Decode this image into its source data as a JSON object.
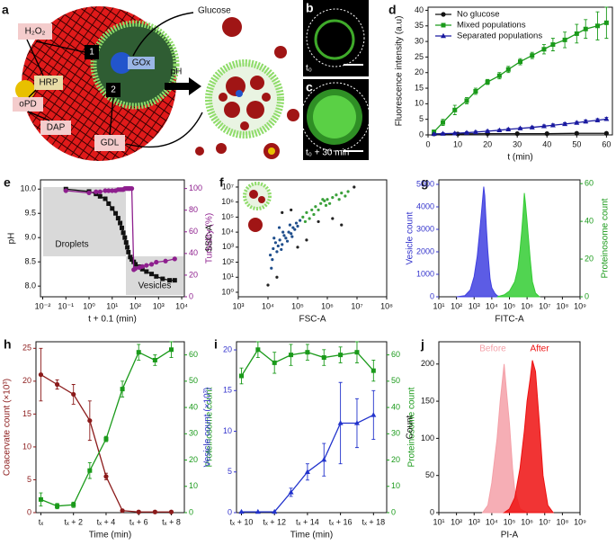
{
  "schematic": {
    "label": "a",
    "h2o2": "H₂O₂",
    "glucose": "Glucose",
    "hrp": "HRP",
    "opd": "oPD",
    "dap": "DAP",
    "gox": "GOx",
    "step1": "1",
    "step2": "2",
    "gdl": "GDL",
    "ph": "pH"
  },
  "images": {
    "b": {
      "label": "b",
      "time": "t₀"
    },
    "c": {
      "label": "c",
      "time": "t₀ + 30 min"
    }
  },
  "chart_data": [
    {
      "type": "line",
      "label": "d",
      "xlabel": "t (min)",
      "ylabel": "Fluorescence intensity (a.u)",
      "xlim": [
        0,
        62
      ],
      "ylim": [
        0,
        41
      ],
      "xticks": [
        0,
        10,
        20,
        30,
        40,
        50,
        60
      ],
      "yticks": [
        0,
        5,
        10,
        15,
        20,
        25,
        30,
        35,
        40
      ],
      "legend": "upper left",
      "series": [
        {
          "name": "No glucose",
          "color": "#111111",
          "marker": "circle",
          "x": [
            2,
            10,
            20,
            30,
            40,
            50,
            60
          ],
          "values": [
            0.3,
            0.3,
            0.4,
            0.4,
            0.4,
            0.5,
            0.5
          ]
        },
        {
          "name": "Mixed populations",
          "color": "#1a9a1a",
          "marker": "square",
          "x": [
            2,
            5,
            9,
            13,
            16,
            20,
            24,
            27,
            31,
            35,
            39,
            42,
            46,
            50,
            53,
            57,
            60
          ],
          "values": [
            1,
            4,
            8,
            11,
            14,
            17,
            19,
            21,
            23.5,
            25.5,
            27.5,
            29,
            30.5,
            32.5,
            34,
            35,
            36
          ],
          "errors": [
            0.5,
            1,
            1.5,
            1,
            1,
            0.8,
            1,
            1,
            1,
            1,
            1.5,
            2,
            2.5,
            3,
            3,
            4.5,
            5
          ]
        },
        {
          "name": "Separated populations",
          "color": "#1a1aa0",
          "marker": "triangle",
          "x": [
            2,
            5,
            9,
            13,
            16,
            20,
            24,
            27,
            31,
            35,
            39,
            42,
            46,
            50,
            53,
            57,
            60
          ],
          "values": [
            0.3,
            0.4,
            0.5,
            0.7,
            0.9,
            1.2,
            1.5,
            1.8,
            2.1,
            2.4,
            2.8,
            3.1,
            3.5,
            3.9,
            4.3,
            4.7,
            5.1
          ],
          "errors": [
            0.3,
            0.3,
            0.3,
            0.3,
            0.3,
            0.3,
            0.3,
            0.3,
            0.3,
            0.4,
            0.4,
            0.4,
            0.4,
            0.4,
            0.5,
            0.5,
            0.5
          ]
        }
      ]
    },
    {
      "type": "line",
      "label": "e",
      "xlabel": "t + 0.1 (min)",
      "ylabel": "pH",
      "y2label": "Turbidity (%)",
      "y2color": "#8e1f8e",
      "xlog": true,
      "xlim": [
        0.008,
        13000
      ],
      "ylim": [
        7.78,
        10.19
      ],
      "y2lim": [
        0,
        108
      ],
      "xticks": [
        {
          "value": 0.01,
          "label": "10⁻²"
        },
        {
          "value": 0.1,
          "label": "10⁻¹"
        },
        {
          "value": 1,
          "label": "10⁰"
        },
        {
          "value": 10,
          "label": "10¹"
        },
        {
          "value": 100,
          "label": "10²"
        },
        {
          "value": 1000,
          "label": "10³"
        },
        {
          "value": 10000,
          "label": "10⁴"
        }
      ],
      "yticks": [
        {
          "value": 8,
          "label": "8.0"
        },
        8.5,
        {
          "value": 9,
          "label": "9.0"
        },
        9.5,
        {
          "value": 10,
          "label": "10.0"
        }
      ],
      "y2ticks": [
        0,
        20,
        40,
        60,
        80,
        100
      ],
      "annotations": [
        "Droplets",
        "Vesicles"
      ],
      "series": [
        {
          "color": "#111111",
          "marker": "square",
          "x": [
            0.1,
            1,
            2,
            3,
            5,
            7,
            10,
            14,
            18,
            22,
            26,
            30,
            35,
            40,
            45,
            50,
            60,
            70,
            85,
            100,
            150,
            200,
            300,
            500,
            800,
            1500,
            3000,
            5000
          ],
          "values": [
            10.0,
            9.95,
            9.9,
            9.85,
            9.8,
            9.7,
            9.6,
            9.5,
            9.4,
            9.3,
            9.2,
            9.1,
            9.0,
            8.9,
            8.8,
            8.7,
            8.6,
            8.55,
            8.5,
            8.45,
            8.4,
            8.35,
            8.3,
            8.25,
            8.2,
            8.15,
            8.12,
            8.12
          ]
        },
        {
          "color": "#8e1f8e",
          "marker": "circle",
          "axis": "y2",
          "x": [
            0.1,
            1,
            2,
            3,
            5,
            7,
            10,
            14,
            18,
            22,
            26,
            30,
            35,
            40,
            45,
            50,
            55,
            60,
            70,
            85,
            100,
            150,
            200,
            300,
            500,
            800,
            2000,
            5000
          ],
          "values": [
            98,
            96,
            97,
            97,
            98,
            98,
            98,
            98,
            99,
            99,
            99,
            99,
            100,
            100,
            100,
            100,
            100,
            100,
            100,
            25,
            26,
            27,
            28,
            29,
            30,
            32,
            33,
            35
          ]
        }
      ]
    },
    {
      "type": "scatter",
      "label": "f",
      "xlabel": "FSC-A",
      "ylabel": "SSC-A",
      "xlog": true,
      "ylog": true,
      "xlim": [
        1000,
        100000000
      ],
      "ylim": [
        0.5,
        30000000
      ],
      "xticks": [
        {
          "value": 1000,
          "label": "10³"
        },
        {
          "value": 10000,
          "label": "10⁴"
        },
        {
          "value": 100000,
          "label": "10⁵"
        },
        {
          "value": 1000000,
          "label": "10⁶"
        },
        {
          "value": 10000000,
          "label": "10⁷"
        },
        {
          "value": 100000000,
          "label": "10⁸"
        }
      ],
      "yticks": [
        {
          "value": 1,
          "label": "10⁰"
        },
        {
          "value": 10,
          "label": "10¹"
        },
        {
          "value": 100,
          "label": "10²"
        },
        {
          "value": 1000,
          "label": "10³"
        },
        {
          "value": 10000,
          "label": "10⁴"
        },
        {
          "value": 100000,
          "label": "10⁵"
        },
        {
          "value": 1000000,
          "label": "10⁶"
        },
        {
          "value": 10000000,
          "label": "10⁷"
        }
      ],
      "series": [
        {
          "color": "#1f4e8c",
          "x": [
            12000,
            15000,
            18000,
            20000,
            25000,
            30000,
            35000,
            40000,
            50000,
            60000,
            70000,
            80000,
            14000,
            22000,
            28000,
            45000,
            55000,
            90000,
            100000,
            16000,
            32000,
            65000,
            120000,
            13000,
            24000
          ],
          "values": [
            300,
            800,
            2000,
            500,
            3000,
            1500,
            6000,
            4000,
            10000,
            8000,
            20000,
            15000,
            150,
            1200,
            700,
            2500,
            30000,
            40000,
            25000,
            4000,
            10000,
            5000,
            60000,
            40,
            20000
          ]
        },
        {
          "color": "#3aa03a",
          "x": [
            150000,
            200000,
            300000,
            400000,
            600000,
            800000,
            1000000,
            1500000,
            2000000,
            3000000,
            5000000,
            250000,
            500000,
            700000,
            1200000,
            180000,
            350000,
            2500000,
            4000000,
            900000
          ],
          "values": [
            100000,
            200000,
            300000,
            500000,
            800000,
            1200000,
            1500000,
            2000000,
            3000000,
            4000000,
            5000000,
            80000,
            300000,
            1500000,
            800000,
            50000,
            150000,
            1500000,
            2500000,
            600000
          ]
        },
        {
          "color": "#222222",
          "x": [
            20000,
            30000,
            3000000,
            100000,
            500000,
            8000000,
            10000,
            60000,
            1500000,
            200000
          ],
          "values": [
            10,
            200000,
            30000,
            1000,
            50000,
            10000000,
            3,
            300000,
            80000,
            3000
          ]
        }
      ]
    },
    {
      "type": "area",
      "label": "g",
      "xlabel": "FITC-A",
      "ylabel": "Vesicle count",
      "y2label": "Proteinosome count",
      "ycolor": "#3333cc",
      "y2color": "#1a9a1a",
      "xlog": true,
      "xlim": [
        10,
        1000000000
      ],
      "ylim": [
        0,
        5200
      ],
      "y2lim": [
        0,
        62
      ],
      "xticks": [
        {
          "value": 10,
          "label": "10¹"
        },
        {
          "value": 100,
          "label": "10²"
        },
        {
          "value": 1000,
          "label": "10³"
        },
        {
          "value": 10000,
          "label": "10⁴"
        },
        {
          "value": 100000,
          "label": "10⁵"
        },
        {
          "value": 1000000,
          "label": "10⁶"
        },
        {
          "value": 10000000,
          "label": "10⁷"
        },
        {
          "value": 100000000,
          "label": "10⁸"
        },
        {
          "value": 1000000000,
          "label": "10⁹"
        }
      ],
      "yticks": [
        0,
        1000,
        2000,
        3000,
        4000,
        5000
      ],
      "y2ticks": [
        0,
        20,
        40,
        60
      ],
      "series": [
        {
          "color": "#4040e0",
          "x": [
            100,
            300,
            600,
            1000,
            1500,
            2000,
            2500,
            3000,
            3500,
            4000,
            5000,
            6000,
            8000,
            10000,
            15000,
            20000,
            30000
          ],
          "values": [
            0,
            50,
            300,
            900,
            1800,
            2800,
            3600,
            4300,
            4900,
            4500,
            3000,
            2000,
            800,
            400,
            150,
            50,
            0
          ]
        },
        {
          "color": "#33cc33",
          "axis": "y2",
          "x": [
            20000,
            50000,
            100000,
            200000,
            300000,
            400000,
            500000,
            600000,
            700000,
            800000,
            1000000,
            1500000,
            2000000,
            3000000,
            5000000
          ],
          "values": [
            0,
            1,
            3,
            8,
            15,
            25,
            35,
            45,
            55,
            50,
            40,
            20,
            8,
            2,
            0
          ]
        }
      ]
    },
    {
      "type": "line",
      "label": "h",
      "xlabel": "Time (min)",
      "ylabel": "Coacervate count (×10³)",
      "y2label": "Proteinosome count",
      "ycolor": "#8b1a1a",
      "y2color": "#1a9a1a",
      "xlim": [
        -0.3,
        8.8
      ],
      "ylim": [
        0,
        26
      ],
      "y2lim": [
        0,
        65
      ],
      "xticks": [
        {
          "value": 0,
          "label": "tₓ"
        },
        {
          "value": 2,
          "label": "tₓ + 2"
        },
        {
          "value": 4,
          "label": "tₓ + 4"
        },
        {
          "value": 6,
          "label": "tₓ + 6"
        },
        {
          "value": 8,
          "label": "tₓ + 8"
        }
      ],
      "yticks": [
        0,
        5,
        10,
        15,
        20,
        25
      ],
      "y2ticks": [
        0,
        10,
        20,
        30,
        40,
        50,
        60
      ],
      "series": [
        {
          "color": "#8b1a1a",
          "marker": "circle",
          "x": [
            0,
            1,
            2,
            3,
            4,
            5,
            6,
            7,
            8
          ],
          "values": [
            21,
            19.5,
            18,
            14,
            5.5,
            0.3,
            0.1,
            0.1,
            0.1
          ],
          "errors": [
            4,
            0.7,
            1.5,
            3,
            0.5,
            0.2,
            0.2,
            0.2,
            0.2
          ]
        },
        {
          "color": "#1a9a1a",
          "marker": "square",
          "axis": "y2",
          "x": [
            0,
            1,
            2,
            3,
            4,
            5,
            6,
            7,
            8
          ],
          "values": [
            5,
            2.5,
            3,
            16,
            28,
            47,
            61,
            58,
            62
          ],
          "errors": [
            2.5,
            1,
            1,
            3,
            1,
            3,
            3,
            2,
            3
          ]
        }
      ]
    },
    {
      "type": "line",
      "label": "i",
      "xlabel": "Time (min)",
      "ylabel": "Vesicle count (×10³)",
      "y2label": "Proteinosome count",
      "ycolor": "#3333cc",
      "y2color": "#1a9a1a",
      "xlim": [
        9.7,
        18.8
      ],
      "ylim": [
        0,
        21
      ],
      "y2lim": [
        0,
        65
      ],
      "xticks": [
        {
          "value": 10,
          "label": "tₓ + 10"
        },
        {
          "value": 12,
          "label": "tₓ + 12"
        },
        {
          "value": 14,
          "label": "tₓ + 14"
        },
        {
          "value": 16,
          "label": "tₓ + 16"
        },
        {
          "value": 18,
          "label": "tₓ + 18"
        }
      ],
      "yticks": [
        0,
        5,
        10,
        15,
        20
      ],
      "y2ticks": [
        0,
        10,
        20,
        30,
        40,
        50,
        60
      ],
      "series": [
        {
          "color": "#2233cc",
          "marker": "triangle",
          "x": [
            10,
            11,
            12,
            13,
            14,
            15,
            16,
            17,
            18
          ],
          "values": [
            0.1,
            0.1,
            0.1,
            2.5,
            5,
            6.5,
            11,
            11,
            12
          ],
          "errors": [
            0,
            0,
            0,
            0.5,
            1,
            2,
            5,
            3,
            3
          ]
        },
        {
          "color": "#1a9a1a",
          "marker": "square",
          "axis": "y2",
          "x": [
            10,
            11,
            12,
            13,
            14,
            15,
            16,
            17,
            18
          ],
          "values": [
            52,
            62,
            57,
            60,
            61,
            59,
            60,
            61,
            54
          ],
          "errors": [
            3,
            3,
            4,
            4,
            3,
            3,
            3,
            4,
            4
          ]
        }
      ]
    },
    {
      "type": "area",
      "label": "j",
      "xlabel": "PI-A",
      "ylabel": "Count",
      "xlog": true,
      "xlim": [
        10,
        1000000000
      ],
      "ylim": [
        0,
        230
      ],
      "xticks": [
        {
          "value": 10,
          "label": "10¹"
        },
        {
          "value": 100,
          "label": "10²"
        },
        {
          "value": 1000,
          "label": "10³"
        },
        {
          "value": 10000,
          "label": "10⁴"
        },
        {
          "value": 100000,
          "label": "10⁵"
        },
        {
          "value": 1000000,
          "label": "10⁶"
        },
        {
          "value": 10000000,
          "label": "10⁷"
        },
        {
          "value": 100000000,
          "label": "10⁸"
        },
        {
          "value": 1000000000,
          "label": "10⁹"
        }
      ],
      "yticks": [
        0,
        50,
        100,
        150,
        200
      ],
      "series": [
        {
          "name": "Before",
          "color": "#f4a0a8",
          "x": [
            3000,
            6000,
            10000,
            20000,
            30000,
            50000,
            70000,
            100000,
            150000,
            200000,
            400000,
            1000000
          ],
          "values": [
            0,
            10,
            40,
            100,
            150,
            200,
            160,
            120,
            60,
            30,
            5,
            0
          ]
        },
        {
          "name": "After",
          "color": "#ee1111",
          "x": [
            50000,
            100000,
            200000,
            400000,
            700000,
            1000000,
            1500000,
            2000000,
            3000000,
            5000000,
            8000000,
            15000000,
            30000000
          ],
          "values": [
            0,
            5,
            20,
            60,
            110,
            150,
            180,
            205,
            190,
            120,
            50,
            10,
            0
          ]
        }
      ]
    }
  ]
}
